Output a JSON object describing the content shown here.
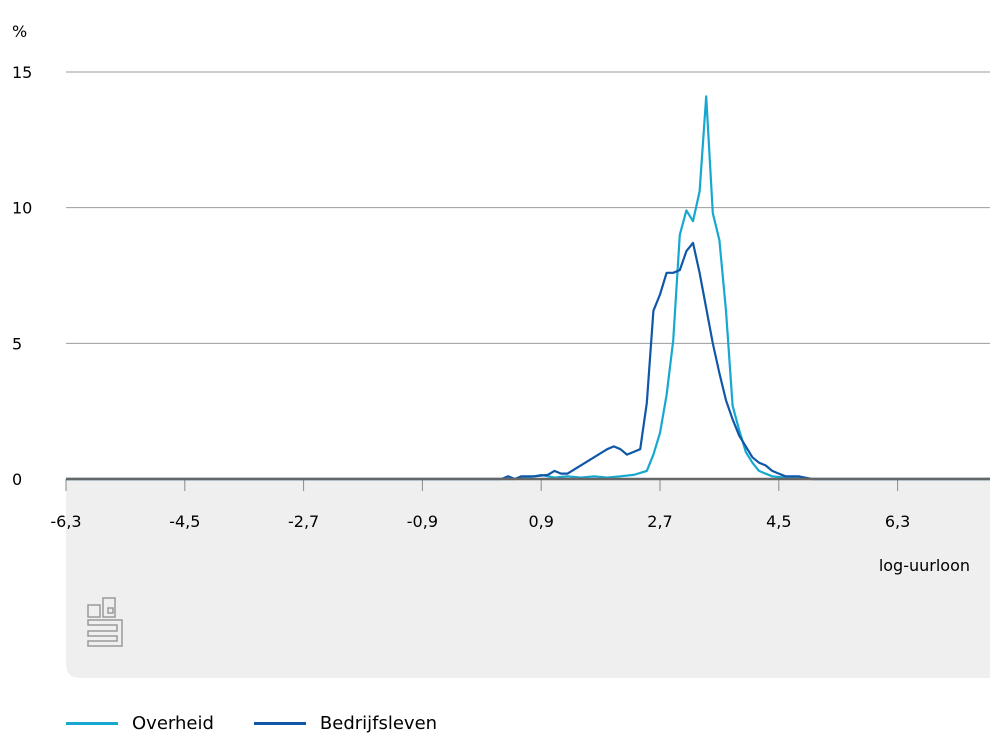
{
  "chart_data": {
    "type": "line",
    "ylabel": "%",
    "xlabel": "log-uurloon",
    "xlim": [
      -6.3,
      7.7
    ],
    "ylim": [
      0,
      15
    ],
    "xticks": [
      "-6,3",
      "-4,5",
      "-2,7",
      "-0,9",
      "0,9",
      "2,7",
      "4,5",
      "6,3"
    ],
    "yticks": [
      "0",
      "5",
      "10",
      "15"
    ],
    "grid": true,
    "legend_position": "bottom-left",
    "series": [
      {
        "name": "Overheid",
        "color": "#17a8cf",
        "points": [
          [
            -6.3,
            0
          ],
          [
            0.5,
            0
          ],
          [
            0.7,
            0.05
          ],
          [
            0.9,
            0.15
          ],
          [
            1.1,
            0.05
          ],
          [
            1.3,
            0.1
          ],
          [
            1.5,
            0.05
          ],
          [
            1.7,
            0.1
          ],
          [
            1.9,
            0.05
          ],
          [
            2.1,
            0.1
          ],
          [
            2.3,
            0.15
          ],
          [
            2.5,
            0.3
          ],
          [
            2.6,
            0.9
          ],
          [
            2.7,
            1.7
          ],
          [
            2.8,
            3.1
          ],
          [
            2.9,
            5.1
          ],
          [
            3.0,
            9.0
          ],
          [
            3.1,
            9.9
          ],
          [
            3.2,
            9.5
          ],
          [
            3.3,
            10.6
          ],
          [
            3.4,
            14.1
          ],
          [
            3.5,
            9.8
          ],
          [
            3.6,
            8.8
          ],
          [
            3.7,
            6.2
          ],
          [
            3.8,
            2.7
          ],
          [
            3.9,
            1.8
          ],
          [
            4.0,
            1.0
          ],
          [
            4.1,
            0.6
          ],
          [
            4.2,
            0.3
          ],
          [
            4.4,
            0.1
          ],
          [
            4.6,
            0.05
          ],
          [
            5.0,
            0
          ],
          [
            7.7,
            0
          ]
        ]
      },
      {
        "name": "Bedrijfsleven",
        "color": "#1157a8",
        "points": [
          [
            -6.3,
            0
          ],
          [
            0.3,
            0
          ],
          [
            0.4,
            0.1
          ],
          [
            0.5,
            0
          ],
          [
            0.6,
            0.1
          ],
          [
            0.8,
            0.1
          ],
          [
            1.0,
            0.15
          ],
          [
            1.1,
            0.3
          ],
          [
            1.2,
            0.2
          ],
          [
            1.3,
            0.2
          ],
          [
            1.5,
            0.5
          ],
          [
            1.7,
            0.8
          ],
          [
            1.9,
            1.1
          ],
          [
            2.0,
            1.2
          ],
          [
            2.1,
            1.1
          ],
          [
            2.2,
            0.9
          ],
          [
            2.4,
            1.1
          ],
          [
            2.5,
            2.8
          ],
          [
            2.6,
            6.2
          ],
          [
            2.7,
            6.8
          ],
          [
            2.8,
            7.6
          ],
          [
            2.9,
            7.6
          ],
          [
            3.0,
            7.7
          ],
          [
            3.1,
            8.4
          ],
          [
            3.2,
            8.7
          ],
          [
            3.3,
            7.6
          ],
          [
            3.4,
            6.3
          ],
          [
            3.5,
            5.0
          ],
          [
            3.6,
            3.9
          ],
          [
            3.7,
            2.9
          ],
          [
            3.8,
            2.2
          ],
          [
            3.9,
            1.6
          ],
          [
            4.0,
            1.2
          ],
          [
            4.1,
            0.8
          ],
          [
            4.2,
            0.6
          ],
          [
            4.3,
            0.5
          ],
          [
            4.4,
            0.3
          ],
          [
            4.5,
            0.2
          ],
          [
            4.6,
            0.1
          ],
          [
            4.8,
            0.1
          ],
          [
            5.0,
            0
          ],
          [
            7.7,
            0
          ]
        ]
      }
    ]
  },
  "legend": [
    {
      "label": "Overheid",
      "color": "#17a8cf"
    },
    {
      "label": "Bedrijfsleven",
      "color": "#1157a8"
    }
  ],
  "logo_text": "cbs",
  "colors": {
    "grid": "#9b9b9b",
    "panel": "#efefef",
    "baseline": "#666666"
  }
}
